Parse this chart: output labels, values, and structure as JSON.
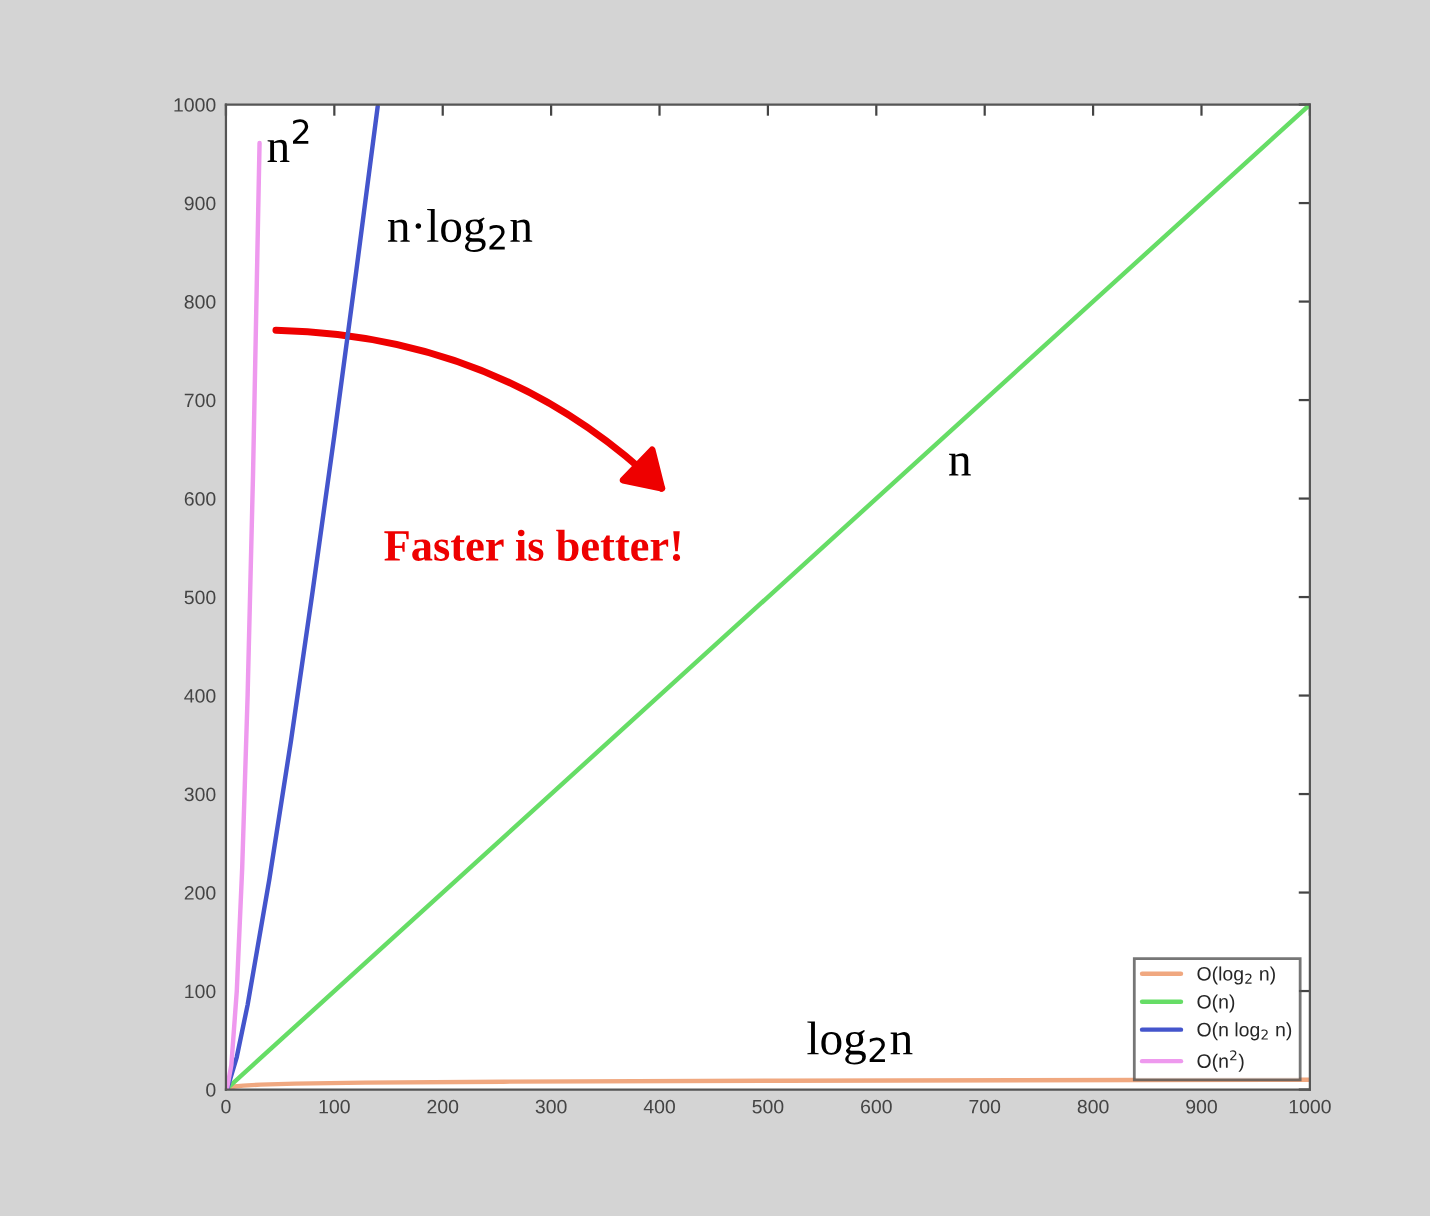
{
  "chart_data": {
    "type": "line",
    "xlim": [
      0,
      1000
    ],
    "ylim": [
      0,
      1000
    ],
    "xticks": [
      0,
      100,
      200,
      300,
      400,
      500,
      600,
      700,
      800,
      900,
      1000
    ],
    "yticks": [
      0,
      100,
      200,
      300,
      400,
      500,
      600,
      700,
      800,
      900,
      1000
    ],
    "grid": false,
    "legend": "bottom right",
    "marker": "none",
    "line_style": "solid",
    "series": [
      {
        "name": "O(log$_{2}$ n)",
        "color": "#f0a880",
        "x": [
          1,
          2,
          4,
          8,
          16,
          32,
          64,
          128,
          256,
          512,
          1000
        ],
        "values": [
          0,
          1,
          2,
          3,
          4,
          5,
          6,
          7,
          8,
          9,
          10
        ]
      },
      {
        "name": "O(n)",
        "color": "#66dd66",
        "x": [
          1,
          1000
        ],
        "values": [
          1,
          1000
        ]
      },
      {
        "name": "O(n log$_{2}$ n)",
        "color": "#4455cc",
        "x": [
          1,
          10,
          20,
          40,
          60,
          80,
          100,
          120,
          140
        ],
        "values": [
          0,
          33,
          86,
          213,
          354,
          506,
          664,
          829,
          998
        ]
      },
      {
        "name": "O(n$^{2}$)",
        "color": "#ee99ee",
        "x": [
          1,
          5,
          10,
          15,
          20,
          25,
          31
        ],
        "values": [
          1,
          25,
          100,
          225,
          400,
          625,
          961
        ]
      }
    ],
    "annotations": [
      "n$^{2}$",
      "n·log$_{2}$n",
      "n",
      "log$_{2}$n",
      "Faster is better!"
    ]
  }
}
